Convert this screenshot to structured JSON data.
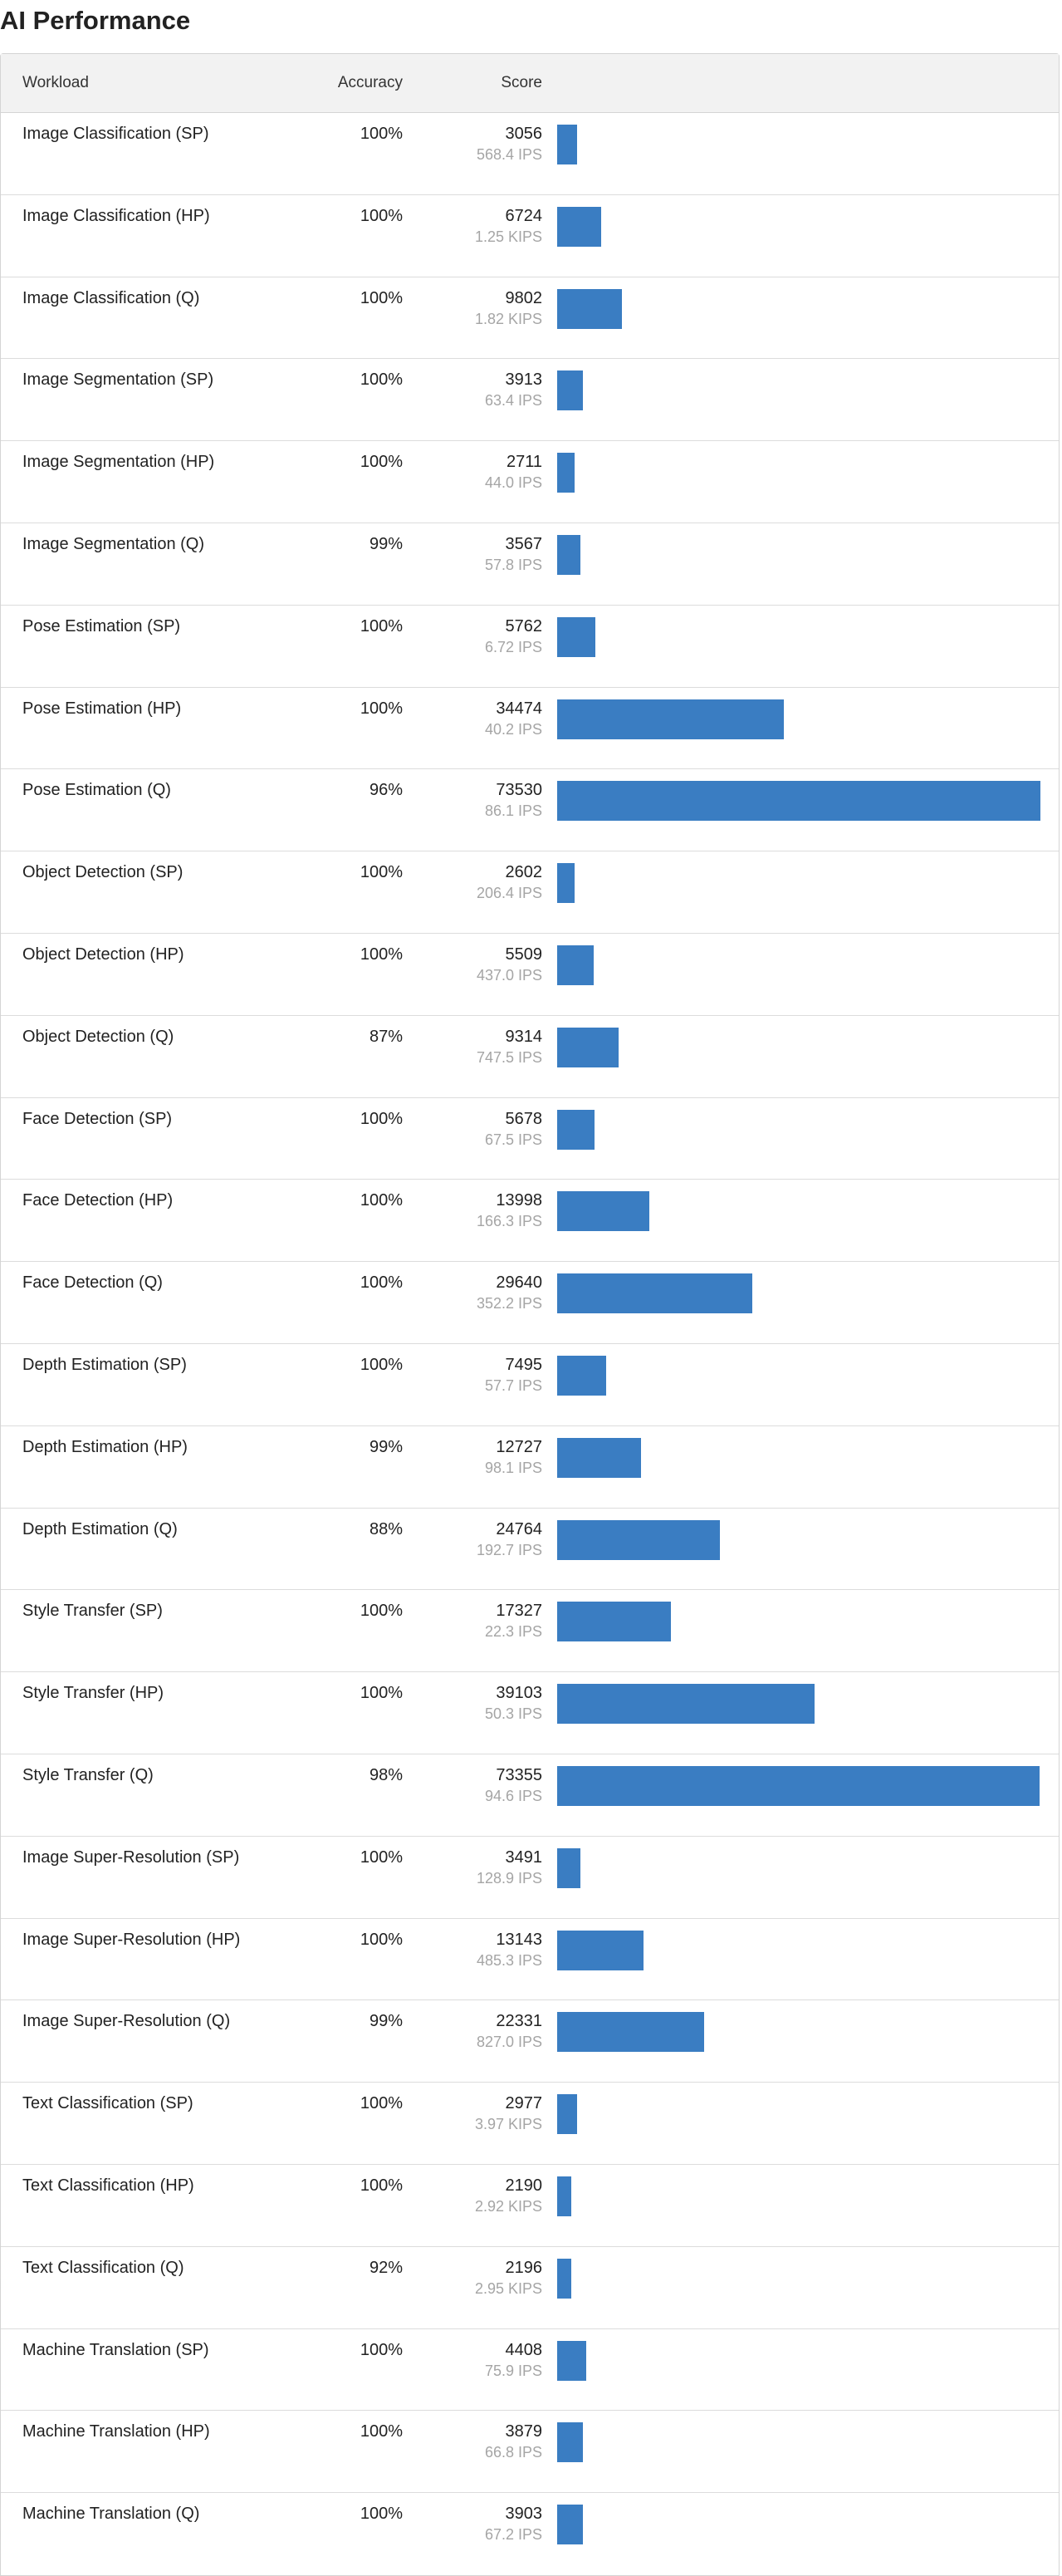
{
  "page": {
    "title": "AI Performance"
  },
  "table": {
    "headers": {
      "workload": "Workload",
      "accuracy": "Accuracy",
      "score": "Score"
    },
    "max_score": 73530,
    "rows": [
      {
        "workload": "Image Classification (SP)",
        "accuracy": "100%",
        "score": "3056",
        "rate": "568.4 IPS",
        "score_value": 3056
      },
      {
        "workload": "Image Classification (HP)",
        "accuracy": "100%",
        "score": "6724",
        "rate": "1.25 KIPS",
        "score_value": 6724
      },
      {
        "workload": "Image Classification (Q)",
        "accuracy": "100%",
        "score": "9802",
        "rate": "1.82 KIPS",
        "score_value": 9802
      },
      {
        "workload": "Image Segmentation (SP)",
        "accuracy": "100%",
        "score": "3913",
        "rate": "63.4 IPS",
        "score_value": 3913
      },
      {
        "workload": "Image Segmentation (HP)",
        "accuracy": "100%",
        "score": "2711",
        "rate": "44.0 IPS",
        "score_value": 2711
      },
      {
        "workload": "Image Segmentation (Q)",
        "accuracy": "99%",
        "score": "3567",
        "rate": "57.8 IPS",
        "score_value": 3567
      },
      {
        "workload": "Pose Estimation (SP)",
        "accuracy": "100%",
        "score": "5762",
        "rate": "6.72 IPS",
        "score_value": 5762
      },
      {
        "workload": "Pose Estimation (HP)",
        "accuracy": "100%",
        "score": "34474",
        "rate": "40.2 IPS",
        "score_value": 34474
      },
      {
        "workload": "Pose Estimation (Q)",
        "accuracy": "96%",
        "score": "73530",
        "rate": "86.1 IPS",
        "score_value": 73530
      },
      {
        "workload": "Object Detection (SP)",
        "accuracy": "100%",
        "score": "2602",
        "rate": "206.4 IPS",
        "score_value": 2602
      },
      {
        "workload": "Object Detection (HP)",
        "accuracy": "100%",
        "score": "5509",
        "rate": "437.0 IPS",
        "score_value": 5509
      },
      {
        "workload": "Object Detection (Q)",
        "accuracy": "87%",
        "score": "9314",
        "rate": "747.5 IPS",
        "score_value": 9314
      },
      {
        "workload": "Face Detection (SP)",
        "accuracy": "100%",
        "score": "5678",
        "rate": "67.5 IPS",
        "score_value": 5678
      },
      {
        "workload": "Face Detection (HP)",
        "accuracy": "100%",
        "score": "13998",
        "rate": "166.3 IPS",
        "score_value": 13998
      },
      {
        "workload": "Face Detection (Q)",
        "accuracy": "100%",
        "score": "29640",
        "rate": "352.2 IPS",
        "score_value": 29640
      },
      {
        "workload": "Depth Estimation (SP)",
        "accuracy": "100%",
        "score": "7495",
        "rate": "57.7 IPS",
        "score_value": 7495
      },
      {
        "workload": "Depth Estimation (HP)",
        "accuracy": "99%",
        "score": "12727",
        "rate": "98.1 IPS",
        "score_value": 12727
      },
      {
        "workload": "Depth Estimation (Q)",
        "accuracy": "88%",
        "score": "24764",
        "rate": "192.7 IPS",
        "score_value": 24764
      },
      {
        "workload": "Style Transfer (SP)",
        "accuracy": "100%",
        "score": "17327",
        "rate": "22.3 IPS",
        "score_value": 17327
      },
      {
        "workload": "Style Transfer (HP)",
        "accuracy": "100%",
        "score": "39103",
        "rate": "50.3 IPS",
        "score_value": 39103
      },
      {
        "workload": "Style Transfer (Q)",
        "accuracy": "98%",
        "score": "73355",
        "rate": "94.6 IPS",
        "score_value": 73355
      },
      {
        "workload": "Image Super-Resolution (SP)",
        "accuracy": "100%",
        "score": "3491",
        "rate": "128.9 IPS",
        "score_value": 3491
      },
      {
        "workload": "Image Super-Resolution (HP)",
        "accuracy": "100%",
        "score": "13143",
        "rate": "485.3 IPS",
        "score_value": 13143
      },
      {
        "workload": "Image Super-Resolution (Q)",
        "accuracy": "99%",
        "score": "22331",
        "rate": "827.0 IPS",
        "score_value": 22331
      },
      {
        "workload": "Text Classification (SP)",
        "accuracy": "100%",
        "score": "2977",
        "rate": "3.97 KIPS",
        "score_value": 2977
      },
      {
        "workload": "Text Classification (HP)",
        "accuracy": "100%",
        "score": "2190",
        "rate": "2.92 KIPS",
        "score_value": 2190
      },
      {
        "workload": "Text Classification (Q)",
        "accuracy": "92%",
        "score": "2196",
        "rate": "2.95 KIPS",
        "score_value": 2196
      },
      {
        "workload": "Machine Translation (SP)",
        "accuracy": "100%",
        "score": "4408",
        "rate": "75.9 IPS",
        "score_value": 4408
      },
      {
        "workload": "Machine Translation (HP)",
        "accuracy": "100%",
        "score": "3879",
        "rate": "66.8 IPS",
        "score_value": 3879
      },
      {
        "workload": "Machine Translation (Q)",
        "accuracy": "100%",
        "score": "3903",
        "rate": "67.2 IPS",
        "score_value": 3903
      }
    ]
  },
  "colors": {
    "bar": "#3a7dc2",
    "header_bg": "#f2f2f2",
    "rate_text": "#a5a5a5"
  }
}
